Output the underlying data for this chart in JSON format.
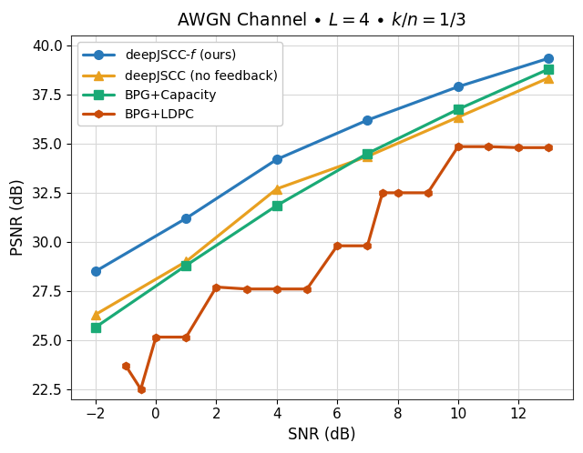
{
  "title": "AWGN Channel $\\bullet$ $L = 4$ $\\bullet$ $k/n = 1/3$",
  "xlabel": "SNR (dB)",
  "ylabel": "PSNR (dB)",
  "xlim": [
    -2.8,
    13.8
  ],
  "ylim": [
    22.0,
    40.5
  ],
  "xticks": [
    -2,
    0,
    2,
    4,
    6,
    8,
    10,
    12
  ],
  "yticks": [
    22.5,
    25.0,
    27.5,
    30.0,
    32.5,
    35.0,
    37.5,
    40.0
  ],
  "series": [
    {
      "label": "deepJSCC-$f$ (ours)",
      "color": "#2979b9",
      "linestyle": "-",
      "marker": "o",
      "linewidth": 2.3,
      "markersize": 7,
      "x": [
        -2,
        1,
        4,
        7,
        10,
        13
      ],
      "y": [
        28.5,
        31.2,
        34.2,
        36.2,
        37.9,
        39.35
      ]
    },
    {
      "label": "deepJSCC (no feedback)",
      "color": "#e8a020",
      "linestyle": "-",
      "marker": "^",
      "linewidth": 2.3,
      "markersize": 7,
      "x": [
        -2,
        1,
        4,
        7,
        10,
        13
      ],
      "y": [
        26.3,
        29.0,
        32.7,
        34.35,
        36.35,
        38.35
      ]
    },
    {
      "label": "BPG+Capacity",
      "color": "#1aaa76",
      "linestyle": "-",
      "marker": "s",
      "linewidth": 2.3,
      "markersize": 7,
      "x": [
        -2,
        1,
        4,
        7,
        10,
        13
      ],
      "y": [
        25.65,
        28.8,
        31.85,
        34.5,
        36.75,
        38.8
      ]
    },
    {
      "label": "BPG+LDPC",
      "color": "#c94c0a",
      "linestyle": "-",
      "marker": "h",
      "linewidth": 2.3,
      "markersize": 6,
      "x": [
        -1,
        -0.5,
        0,
        1,
        2,
        3,
        4,
        5,
        6,
        7,
        7.5,
        8,
        9,
        10,
        11,
        12,
        13
      ],
      "y": [
        23.7,
        22.5,
        25.15,
        25.15,
        27.7,
        27.6,
        27.6,
        27.6,
        29.8,
        29.8,
        32.5,
        32.5,
        32.5,
        34.85,
        34.85,
        34.8,
        34.8
      ]
    }
  ],
  "legend_loc": "upper left",
  "grid_color": "#d8d8d8",
  "bg_color": "#ffffff",
  "title_fontsize": 13.5,
  "label_fontsize": 12,
  "tick_fontsize": 11
}
